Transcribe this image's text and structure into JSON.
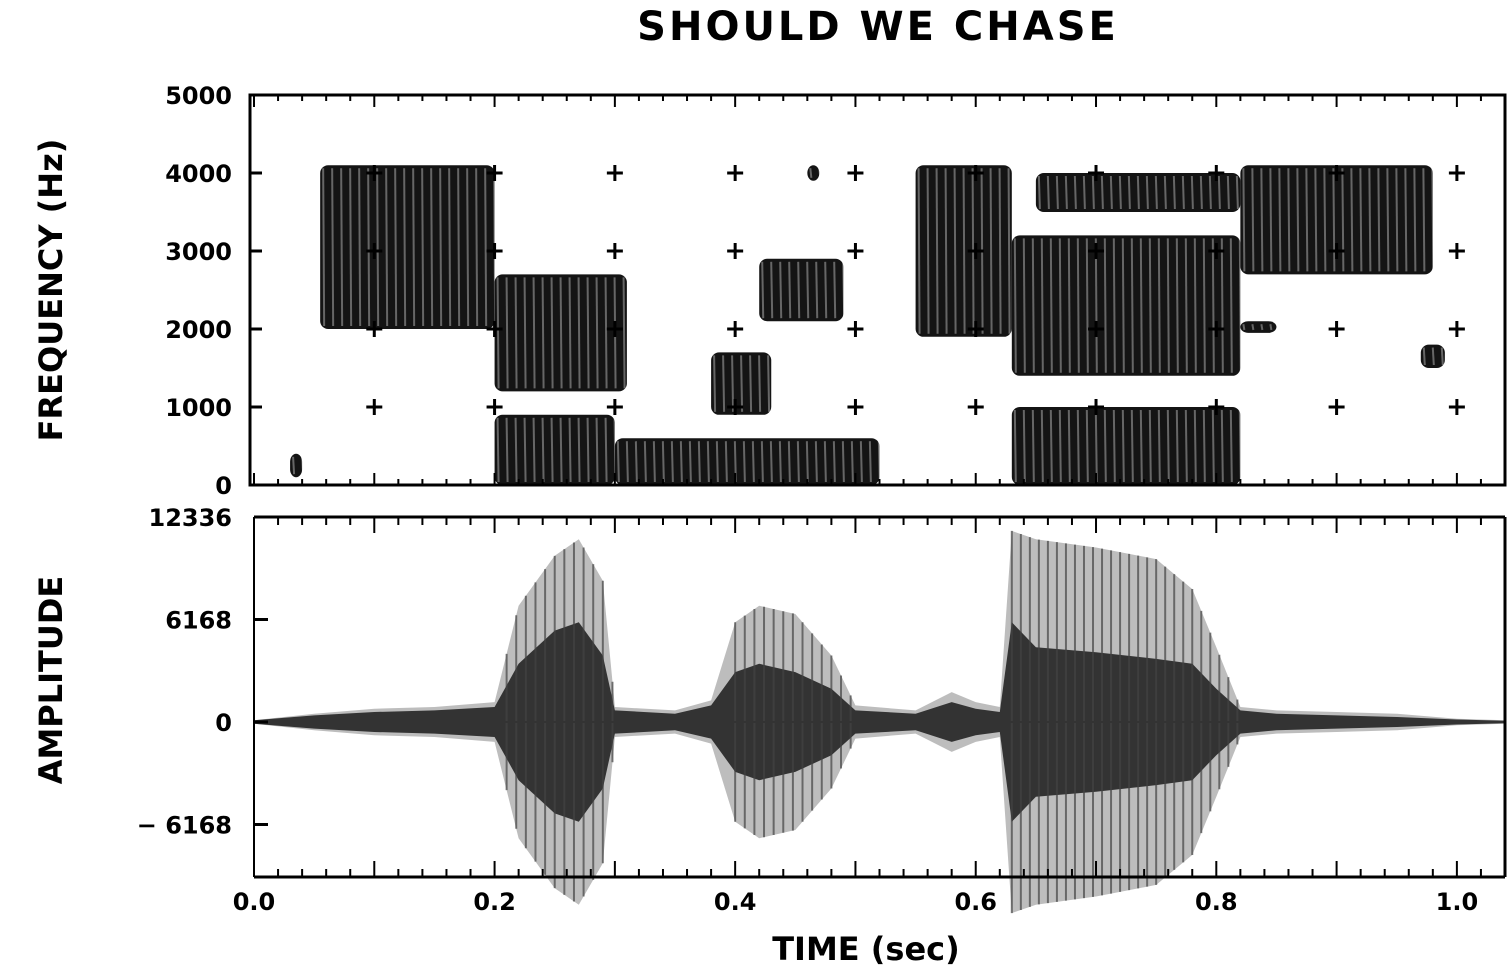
{
  "chart_data": [
    {
      "type": "heatmap",
      "title": "SHOULD WE CHASE",
      "ylabel": "FREQUENCY (Hz)",
      "xlabel": "",
      "xlim": [
        0.0,
        1.04
      ],
      "ylim": [
        0,
        5000
      ],
      "y_ticks": [
        "5000",
        "4000",
        "3000",
        "2000",
        "1000",
        "0"
      ],
      "y_tick_values": [
        5000,
        4000,
        3000,
        2000,
        1000,
        0
      ],
      "grid_marks": "plus markers at 0.1 s x 1000 Hz",
      "regions": [
        {
          "t0": 0.03,
          "t1": 0.04,
          "f0": 100,
          "f1": 400
        },
        {
          "t0": 0.055,
          "t1": 0.2,
          "f0": 2000,
          "f1": 4100
        },
        {
          "t0": 0.2,
          "t1": 0.31,
          "f0": 1200,
          "f1": 2700
        },
        {
          "t0": 0.2,
          "t1": 0.3,
          "f0": 0,
          "f1": 900
        },
        {
          "t0": 0.3,
          "t1": 0.52,
          "f0": 0,
          "f1": 600
        },
        {
          "t0": 0.38,
          "t1": 0.43,
          "f0": 900,
          "f1": 1700
        },
        {
          "t0": 0.42,
          "t1": 0.49,
          "f0": 2100,
          "f1": 2900
        },
        {
          "t0": 0.46,
          "t1": 0.47,
          "f0": 3900,
          "f1": 4100
        },
        {
          "t0": 0.55,
          "t1": 0.63,
          "f0": 1900,
          "f1": 4100
        },
        {
          "t0": 0.63,
          "t1": 0.82,
          "f0": 1400,
          "f1": 3200
        },
        {
          "t0": 0.65,
          "t1": 0.82,
          "f0": 3500,
          "f1": 4000
        },
        {
          "t0": 0.63,
          "t1": 0.82,
          "f0": 0,
          "f1": 1000
        },
        {
          "t0": 0.82,
          "t1": 0.98,
          "f0": 2700,
          "f1": 4100
        },
        {
          "t0": 0.82,
          "t1": 0.85,
          "f0": 1950,
          "f1": 2100
        },
        {
          "t0": 0.97,
          "t1": 0.99,
          "f0": 1500,
          "f1": 1800
        }
      ]
    },
    {
      "type": "line",
      "title": "",
      "ylabel": "AMPLITUDE",
      "xlabel": "TIME (sec)",
      "xlim": [
        0.0,
        1.04
      ],
      "ylim": [
        -12336,
        12336
      ],
      "y_ticks": [
        "12336",
        "6168",
        "0",
        "− 6168"
      ],
      "y_tick_values": [
        12336,
        6168,
        0,
        -6168
      ],
      "x_ticks": [
        "0.0",
        "0.2",
        "0.4",
        "0.6",
        "0.8",
        "1.0"
      ],
      "x_tick_values": [
        0.0,
        0.2,
        0.4,
        0.6,
        0.8,
        1.0
      ],
      "envelope": {
        "t": [
          0.0,
          0.05,
          0.1,
          0.15,
          0.2,
          0.22,
          0.25,
          0.27,
          0.29,
          0.3,
          0.35,
          0.38,
          0.4,
          0.42,
          0.45,
          0.48,
          0.5,
          0.55,
          0.58,
          0.6,
          0.62,
          0.63,
          0.65,
          0.7,
          0.75,
          0.78,
          0.8,
          0.82,
          0.85,
          0.9,
          0.95,
          1.0,
          1.04
        ],
        "outer": [
          100,
          500,
          800,
          900,
          1200,
          7000,
          10000,
          11000,
          8500,
          900,
          700,
          1300,
          6000,
          7000,
          6500,
          4000,
          1000,
          700,
          1800,
          1200,
          900,
          11500,
          11000,
          10500,
          9800,
          8000,
          4500,
          900,
          700,
          600,
          500,
          200,
          100
        ],
        "inner": [
          100,
          400,
          600,
          700,
          900,
          3500,
          5500,
          6000,
          4000,
          700,
          500,
          1000,
          3000,
          3500,
          3000,
          2000,
          700,
          500,
          1200,
          800,
          600,
          6000,
          4500,
          4200,
          3800,
          3500,
          2000,
          700,
          500,
          400,
          300,
          150,
          80
        ]
      }
    }
  ]
}
